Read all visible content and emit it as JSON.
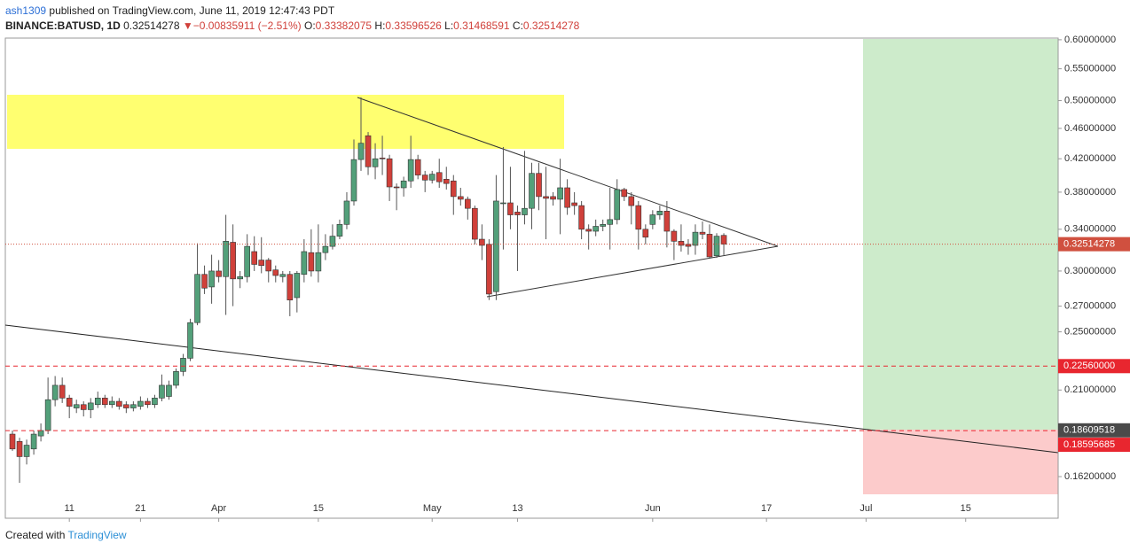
{
  "header": {
    "author": "ash1309",
    "published": "published on TradingView.com, June 11, 2019 12:47:43 PDT",
    "symbol": "BINANCE:BATUSD, 1D",
    "arrow": "▼",
    "change": "−0.00835911 (−2.51%)",
    "o": "O:",
    "h": "H:",
    "l": "L:",
    "c": "C:"
  },
  "footer": {
    "created": "Created with",
    "brand": "TradingView"
  },
  "chart_data": {
    "type": "candlestick",
    "log_scale": true,
    "up_color": "#53a07a",
    "down_color": "#d0403a",
    "x": [
      "2019-03-03",
      "2019-03-04",
      "2019-03-05",
      "2019-03-06",
      "2019-03-07",
      "2019-03-08",
      "2019-03-09",
      "2019-03-10",
      "2019-03-11",
      "2019-03-12",
      "2019-03-13",
      "2019-03-14",
      "2019-03-15",
      "2019-03-16",
      "2019-03-17",
      "2019-03-18",
      "2019-03-19",
      "2019-03-20",
      "2019-03-21",
      "2019-03-22",
      "2019-03-23",
      "2019-03-24",
      "2019-03-25",
      "2019-03-26",
      "2019-03-27",
      "2019-03-28",
      "2019-03-29",
      "2019-03-30",
      "2019-03-31",
      "2019-04-01",
      "2019-04-02",
      "2019-04-03",
      "2019-04-04",
      "2019-04-05",
      "2019-04-06",
      "2019-04-07",
      "2019-04-08",
      "2019-04-09",
      "2019-04-10",
      "2019-04-11",
      "2019-04-12",
      "2019-04-13",
      "2019-04-14",
      "2019-04-15",
      "2019-04-16",
      "2019-04-17",
      "2019-04-18",
      "2019-04-19",
      "2019-04-20",
      "2019-04-21",
      "2019-04-22",
      "2019-04-23",
      "2019-04-24",
      "2019-04-25",
      "2019-04-26",
      "2019-04-27",
      "2019-04-28",
      "2019-04-29",
      "2019-04-30",
      "2019-05-01",
      "2019-05-02",
      "2019-05-03",
      "2019-05-04",
      "2019-05-05",
      "2019-05-06",
      "2019-05-07",
      "2019-05-08",
      "2019-05-09",
      "2019-05-10",
      "2019-05-11",
      "2019-05-12",
      "2019-05-13",
      "2019-05-14",
      "2019-05-15",
      "2019-05-16",
      "2019-05-17",
      "2019-05-18",
      "2019-05-19",
      "2019-05-20",
      "2019-05-21",
      "2019-05-22",
      "2019-05-23",
      "2019-05-24",
      "2019-05-25",
      "2019-05-26",
      "2019-05-27",
      "2019-05-28",
      "2019-05-29",
      "2019-05-30",
      "2019-05-31",
      "2019-06-01",
      "2019-06-02",
      "2019-06-03",
      "2019-06-04",
      "2019-06-05",
      "2019-06-06",
      "2019-06-07",
      "2019-06-08",
      "2019-06-09",
      "2019-06-10",
      "2019-06-11"
    ],
    "open": [
      0.184,
      0.18,
      0.172,
      0.176,
      0.183,
      0.186,
      0.204,
      0.213,
      0.205,
      0.199,
      0.201,
      0.198,
      0.201,
      0.205,
      0.201,
      0.203,
      0.201,
      0.199,
      0.2,
      0.203,
      0.201,
      0.205,
      0.206,
      0.213,
      0.222,
      0.231,
      0.257,
      0.297,
      0.286,
      0.3,
      0.295,
      0.327,
      0.293,
      0.295,
      0.318,
      0.31,
      0.31,
      0.301,
      0.295,
      0.297,
      0.277,
      0.297,
      0.317,
      0.3,
      0.317,
      0.323,
      0.333,
      0.345,
      0.37,
      0.419,
      0.45,
      0.41,
      0.421,
      0.42,
      0.386,
      0.385,
      0.393,
      0.419,
      0.4,
      0.394,
      0.403,
      0.395,
      0.393,
      0.375,
      0.372,
      0.362,
      0.33,
      0.325,
      0.282,
      0.368,
      0.368,
      0.358,
      0.355,
      0.362,
      0.402,
      0.375,
      0.375,
      0.372,
      0.385,
      0.368,
      0.365,
      0.34,
      0.338,
      0.343,
      0.345,
      0.35,
      0.383,
      0.375,
      0.365,
      0.34,
      0.345,
      0.355,
      0.359,
      0.338,
      0.328,
      0.325,
      0.324,
      0.337,
      0.335,
      0.314,
      0.33382075
    ],
    "high": [
      0.186,
      0.182,
      0.181,
      0.186,
      0.19,
      0.218,
      0.219,
      0.218,
      0.207,
      0.204,
      0.203,
      0.205,
      0.209,
      0.207,
      0.206,
      0.205,
      0.203,
      0.203,
      0.206,
      0.205,
      0.207,
      0.22,
      0.216,
      0.224,
      0.234,
      0.26,
      0.326,
      0.305,
      0.315,
      0.31,
      0.355,
      0.345,
      0.3,
      0.335,
      0.333,
      0.332,
      0.312,
      0.305,
      0.3,
      0.3,
      0.3,
      0.33,
      0.34,
      0.345,
      0.335,
      0.345,
      0.35,
      0.38,
      0.445,
      0.505,
      0.455,
      0.44,
      0.45,
      0.425,
      0.39,
      0.398,
      0.45,
      0.425,
      0.405,
      0.405,
      0.42,
      0.41,
      0.4,
      0.385,
      0.375,
      0.365,
      0.345,
      0.33,
      0.4,
      0.435,
      0.41,
      0.365,
      0.43,
      0.415,
      0.415,
      0.41,
      0.38,
      0.42,
      0.395,
      0.38,
      0.37,
      0.345,
      0.35,
      0.35,
      0.385,
      0.395,
      0.385,
      0.38,
      0.37,
      0.345,
      0.36,
      0.365,
      0.37,
      0.34,
      0.345,
      0.33,
      0.345,
      0.348,
      0.345,
      0.336,
      0.33596526
    ],
    "low": [
      0.175,
      0.159,
      0.168,
      0.173,
      0.18,
      0.184,
      0.2,
      0.202,
      0.193,
      0.196,
      0.194,
      0.193,
      0.199,
      0.199,
      0.199,
      0.198,
      0.196,
      0.197,
      0.198,
      0.199,
      0.199,
      0.203,
      0.204,
      0.211,
      0.219,
      0.229,
      0.255,
      0.28,
      0.272,
      0.29,
      0.263,
      0.27,
      0.285,
      0.29,
      0.3,
      0.298,
      0.29,
      0.29,
      0.29,
      0.262,
      0.265,
      0.29,
      0.295,
      0.29,
      0.31,
      0.32,
      0.33,
      0.34,
      0.365,
      0.405,
      0.4,
      0.395,
      0.4,
      0.37,
      0.36,
      0.375,
      0.385,
      0.395,
      0.38,
      0.39,
      0.385,
      0.383,
      0.355,
      0.365,
      0.35,
      0.325,
      0.31,
      0.275,
      0.275,
      0.32,
      0.34,
      0.3,
      0.345,
      0.34,
      0.36,
      0.33,
      0.365,
      0.335,
      0.355,
      0.355,
      0.33,
      0.32,
      0.333,
      0.338,
      0.32,
      0.345,
      0.37,
      0.345,
      0.32,
      0.325,
      0.34,
      0.35,
      0.322,
      0.31,
      0.318,
      0.315,
      0.315,
      0.33,
      0.312,
      0.312,
      0.31468591
    ],
    "close": [
      0.176,
      0.172,
      0.178,
      0.184,
      0.186,
      0.204,
      0.213,
      0.205,
      0.2,
      0.201,
      0.198,
      0.202,
      0.205,
      0.201,
      0.203,
      0.2,
      0.199,
      0.201,
      0.203,
      0.201,
      0.205,
      0.213,
      0.213,
      0.222,
      0.231,
      0.257,
      0.297,
      0.285,
      0.3,
      0.295,
      0.328,
      0.293,
      0.295,
      0.323,
      0.306,
      0.305,
      0.3,
      0.296,
      0.297,
      0.275,
      0.298,
      0.318,
      0.3,
      0.317,
      0.323,
      0.333,
      0.345,
      0.37,
      0.419,
      0.44,
      0.41,
      0.42,
      0.42,
      0.386,
      0.385,
      0.393,
      0.419,
      0.4,
      0.394,
      0.401,
      0.392,
      0.39,
      0.375,
      0.372,
      0.362,
      0.33,
      0.324,
      0.28,
      0.37,
      0.368,
      0.355,
      0.355,
      0.362,
      0.402,
      0.375,
      0.373,
      0.372,
      0.385,
      0.363,
      0.365,
      0.34,
      0.338,
      0.343,
      0.345,
      0.35,
      0.383,
      0.375,
      0.365,
      0.34,
      0.332,
      0.355,
      0.359,
      0.338,
      0.328,
      0.324,
      0.323,
      0.337,
      0.335,
      0.313,
      0.333,
      0.32514278
    ],
    "xlim": [
      "2019-03-02",
      "2019-07-28"
    ],
    "xticks": [
      {
        "value": "2019-03-11",
        "label": "11"
      },
      {
        "value": "2019-03-21",
        "label": "21"
      },
      {
        "value": "2019-04-01",
        "label": "Apr"
      },
      {
        "value": "2019-04-15",
        "label": "15"
      },
      {
        "value": "2019-05-01",
        "label": "May"
      },
      {
        "value": "2019-05-13",
        "label": "13"
      },
      {
        "value": "2019-06-01",
        "label": "Jun"
      },
      {
        "value": "2019-06-17",
        "label": "17"
      },
      {
        "value": "2019-07-01",
        "label": "Jul"
      },
      {
        "value": "2019-07-15",
        "label": "15"
      }
    ],
    "ylim": [
      0.143,
      0.603
    ],
    "yticks": [
      {
        "value": 0.6,
        "label": "0.60000000"
      },
      {
        "value": 0.55,
        "label": "0.55000000"
      },
      {
        "value": 0.5,
        "label": "0.50000000"
      },
      {
        "value": 0.46,
        "label": "0.46000000"
      },
      {
        "value": 0.42,
        "label": "0.42000000"
      },
      {
        "value": 0.38,
        "label": "0.38000000"
      },
      {
        "value": 0.34,
        "label": "0.34000000"
      },
      {
        "value": 0.3,
        "label": "0.30000000"
      },
      {
        "value": 0.27,
        "label": "0.27000000"
      },
      {
        "value": 0.25,
        "label": "0.25000000"
      },
      {
        "value": 0.21,
        "label": "0.21000000"
      },
      {
        "value": 0.162,
        "label": "0.16200000"
      }
    ],
    "price_lines": [
      {
        "value": 0.2256,
        "label": "0.22560000",
        "color": "#e8262f"
      },
      {
        "value": 0.18595685,
        "label": "0.18595685",
        "color": "#e8262f"
      }
    ],
    "position_label": {
      "value": 0.18609518,
      "label": "0.18609518",
      "color": "#4a4a4a"
    },
    "last_color": "#d0503f"
  }
}
